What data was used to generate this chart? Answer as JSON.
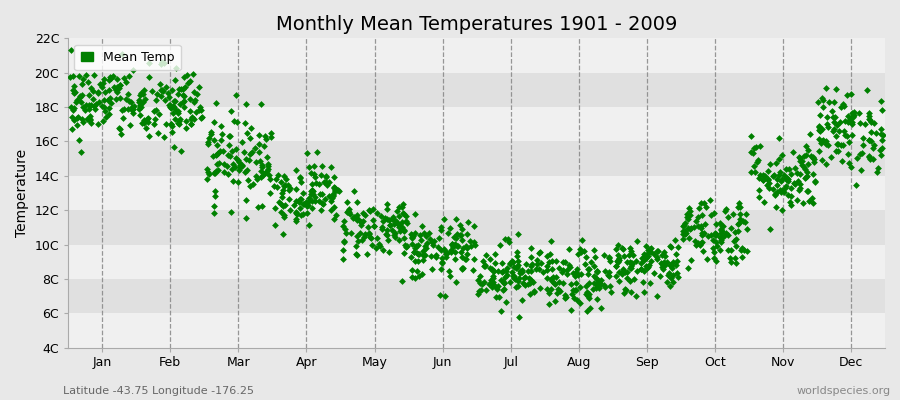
{
  "title": "Monthly Mean Temperatures 1901 - 2009",
  "ylabel": "Temperature",
  "xlabel": "",
  "subtitle_left": "Latitude -43.75 Longitude -176.25",
  "subtitle_right": "worldspecies.org",
  "legend_label": "Mean Temp",
  "months": [
    "Jan",
    "Feb",
    "Mar",
    "Apr",
    "May",
    "Jun",
    "Jul",
    "Aug",
    "Sep",
    "Oct",
    "Nov",
    "Dec"
  ],
  "month_means": [
    18.3,
    18.0,
    15.1,
    13.0,
    11.0,
    9.6,
    8.4,
    7.9,
    8.8,
    10.8,
    14.0,
    16.6
  ],
  "month_stds": [
    1.1,
    1.2,
    1.3,
    0.9,
    0.9,
    0.9,
    0.9,
    0.9,
    0.8,
    1.0,
    1.1,
    1.2
  ],
  "n_years": 109,
  "ylim_min": 4,
  "ylim_max": 22,
  "ytick_step": 2,
  "marker_color": "#008000",
  "marker_size": 12,
  "bg_color": "#e8e8e8",
  "band_colors": [
    "#f0f0f0",
    "#e0e0e0"
  ],
  "grid_color": "#808080",
  "title_fontsize": 14,
  "axis_fontsize": 10,
  "tick_fontsize": 9,
  "legend_fontsize": 9,
  "annotation_fontsize": 8,
  "seed": 42
}
